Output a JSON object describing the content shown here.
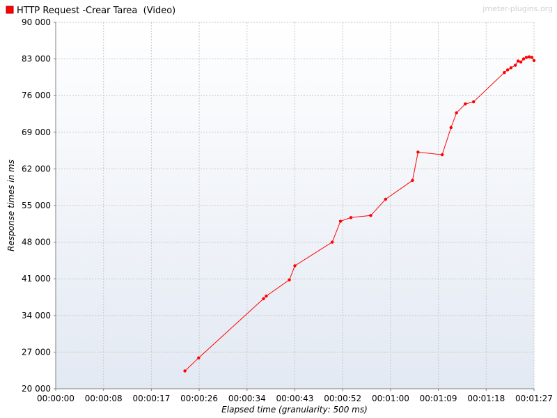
{
  "watermark": "jmeter-plugins.org",
  "colors": {
    "series": "#ff0000",
    "series_edge": "#a00000",
    "grid": "#c8c8c8",
    "axis": "#808080",
    "text": "#000000",
    "watermark": "#d0d0d0",
    "bg_top": "#ffffff",
    "bg_bottom": "#e3e9f3"
  },
  "chart_data": {
    "type": "line",
    "title": "",
    "xlabel": "Elapsed time (granularity: 500 ms)",
    "ylabel": "Response times in ms",
    "x_unit": "seconds elapsed (axis shows hh:mm:ss)",
    "xlim": [
      0,
      87
    ],
    "ylim": [
      20000,
      90000
    ],
    "x_ticks": [
      "00:00:00",
      "00:00:08",
      "00:00:17",
      "00:00:26",
      "00:00:34",
      "00:00:43",
      "00:00:52",
      "00:01:00",
      "00:01:09",
      "00:01:18",
      "00:01:27"
    ],
    "y_ticks": [
      "20 000",
      "27 000",
      "34 000",
      "41 000",
      "48 000",
      "55 000",
      "62 000",
      "69 000",
      "76 000",
      "83 000",
      "90 000"
    ],
    "grid": true,
    "legend_position": "top-left",
    "series": [
      {
        "name": "HTTP Request -Crear Tarea  (Video)",
        "color": "#ff0000",
        "x": [
          23.5,
          26.0,
          37.8,
          38.3,
          42.5,
          43.5,
          50.3,
          51.8,
          53.7,
          57.3,
          60.0,
          64.9,
          65.9,
          70.3,
          71.9,
          72.9,
          74.5,
          76.0,
          81.6,
          82.2,
          82.8,
          83.6,
          84.1,
          84.6,
          85.1,
          85.6,
          86.1,
          86.6,
          87.0
        ],
        "y": [
          23400,
          25900,
          37200,
          37700,
          40800,
          43500,
          48000,
          52000,
          52700,
          53100,
          56200,
          59800,
          65200,
          64700,
          69900,
          72700,
          74400,
          74800,
          80400,
          80900,
          81300,
          81800,
          82600,
          82400,
          83000,
          83300,
          83400,
          83300,
          82700
        ]
      }
    ]
  }
}
